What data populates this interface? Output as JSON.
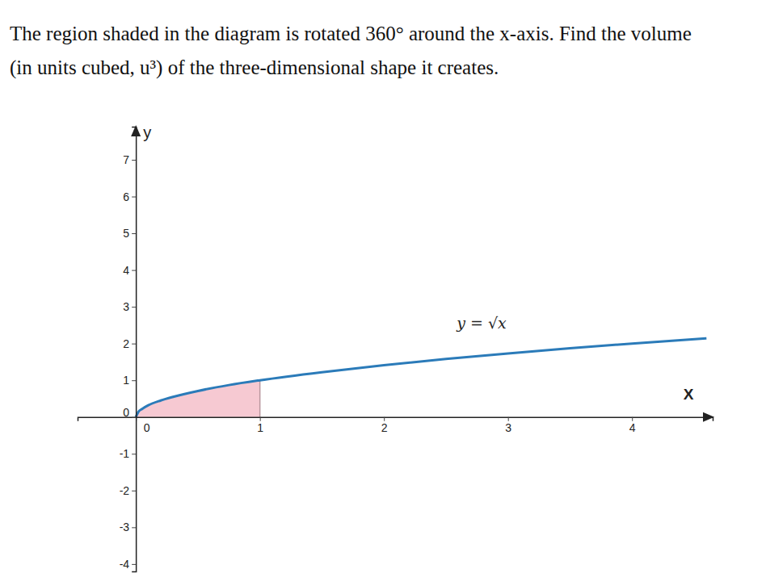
{
  "chart_data": {
    "type": "line",
    "title": [
      "The region shaded in the diagram is rotated 360° around the x-axis. Find the volume",
      "(in units cubed, u³) of the three-dimensional shape it creates."
    ],
    "xlabel": "X",
    "ylabel": "y",
    "annotation": "y = √x",
    "xlim": [
      -0.47,
      4.65
    ],
    "ylim": [
      -4.2,
      7.9
    ],
    "xticks": [
      0,
      1,
      2,
      3,
      4
    ],
    "yticks": [
      -4,
      -3,
      -2,
      -1,
      0,
      1,
      2,
      3,
      4,
      5,
      6,
      7
    ],
    "grid": false,
    "series": [
      {
        "type": "line",
        "color": "#2b7bb9",
        "x": [
          0,
          0.02,
          0.05,
          0.1,
          0.2,
          0.3,
          0.5,
          0.75,
          1,
          1.5,
          2,
          2.5,
          3,
          3.5,
          4,
          4.6
        ],
        "values": [
          0,
          0.14,
          0.22,
          0.32,
          0.45,
          0.55,
          0.71,
          0.87,
          1,
          1.22,
          1.41,
          1.58,
          1.73,
          1.87,
          2,
          2.14
        ]
      },
      {
        "type": "area",
        "color": "#f6c9d2",
        "x": [
          0,
          0.02,
          0.05,
          0.1,
          0.2,
          0.3,
          0.5,
          0.75,
          1
        ],
        "values": [
          0,
          0.14,
          0.22,
          0.32,
          0.45,
          0.55,
          0.71,
          0.87,
          1
        ]
      }
    ]
  }
}
